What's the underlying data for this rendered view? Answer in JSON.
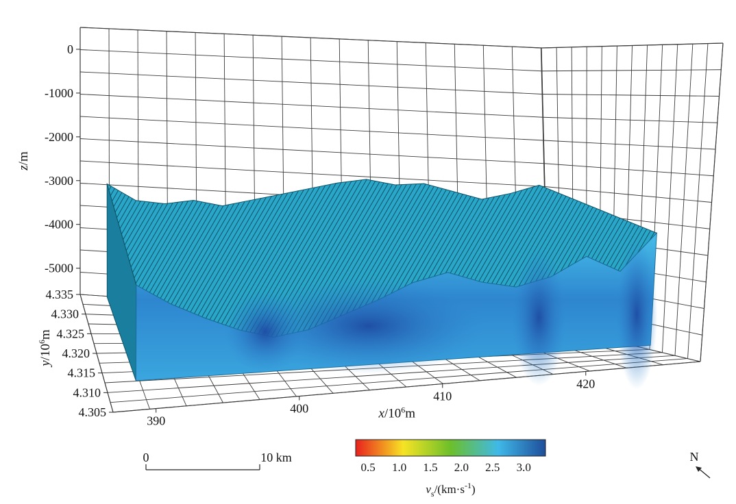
{
  "chart_data": {
    "type": "volume",
    "axes": {
      "x": {
        "label_var": "x",
        "label_unit": "/10",
        "label_exp": "6",
        "label_unit2": "m",
        "ticks": [
          390,
          400,
          410,
          420
        ],
        "range": [
          387,
          428
        ]
      },
      "y": {
        "label_var": "y",
        "label_unit": "/10",
        "label_exp": "6",
        "label_unit2": "m",
        "ticks": [
          "4.305",
          "4.310",
          "4.315",
          "4.320",
          "4.325",
          "4.330",
          "4.335"
        ],
        "range": [
          4.305,
          4.335
        ]
      },
      "z": {
        "label_var": "z",
        "label_unit": "/m",
        "ticks": [
          0,
          -1000,
          -2000,
          -3000,
          -4000,
          -5000
        ],
        "range": [
          -5600,
          500
        ]
      }
    },
    "grid": true,
    "colorbar": {
      "variable": "v",
      "subscript": "s",
      "unit": "/(km·s",
      "unit_exp": "-1",
      "unit_close": ")",
      "ticks": [
        "0.5",
        "1.0",
        "1.5",
        "2.0",
        "2.5",
        "3.0"
      ],
      "range": [
        0.3,
        3.35
      ],
      "colors": [
        "#e8211d",
        "#f7e324",
        "#6cbf2a",
        "#3fb9e8",
        "#1f4e9a"
      ]
    },
    "scale_bar": {
      "start": "0",
      "end": "10 km"
    },
    "north_arrow": "N",
    "volume_top_profile_z": [
      -3050,
      -3400,
      -3450,
      -3350,
      -3450,
      -3300,
      -3150,
      -3000,
      -2850,
      -2750,
      -2850,
      -2800,
      -2950,
      -3100,
      -2950,
      -2750
    ]
  }
}
